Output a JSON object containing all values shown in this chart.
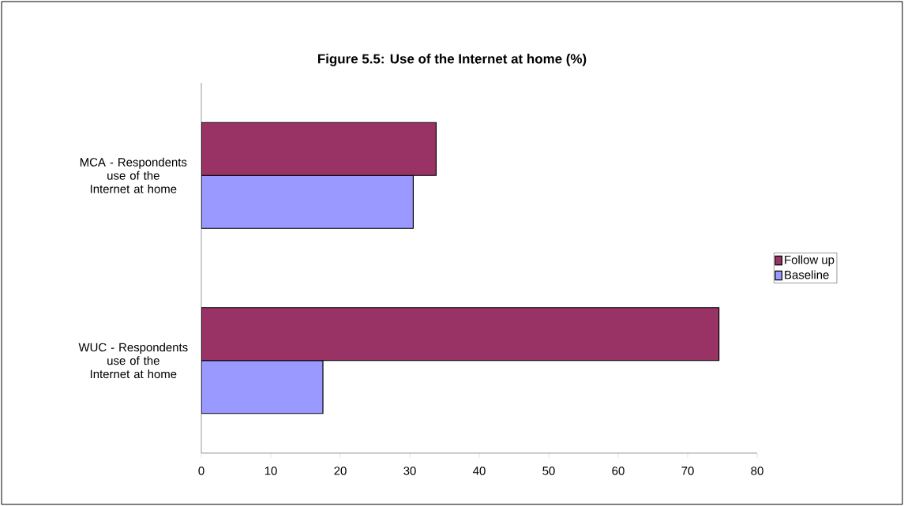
{
  "chart_data": {
    "type": "bar",
    "orientation": "horizontal",
    "title": "Figure 5.5: Use of the Internet at home (%)",
    "categories": [
      "MCA - Respondents use of the Internet at home",
      "WUC - Respondents use of the Internet at home"
    ],
    "series": [
      {
        "name": "Follow up",
        "color": "#993366",
        "values": [
          33.8,
          74.5
        ]
      },
      {
        "name": "Baseline",
        "color": "#9999ff",
        "values": [
          30.5,
          17.5
        ]
      }
    ],
    "xlim": [
      0,
      80
    ],
    "xticks": [
      0,
      10,
      20,
      30,
      40,
      50,
      60,
      70,
      80
    ],
    "legend": "right"
  }
}
